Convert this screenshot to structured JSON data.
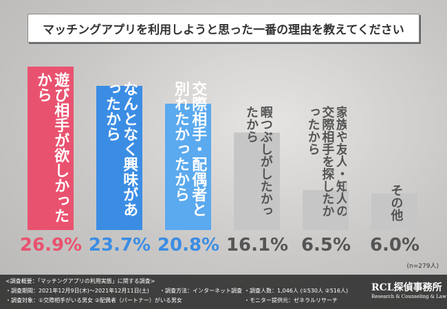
{
  "chart_data": {
    "type": "bar",
    "title": "マッチングアプリを利用しようと思った一番の理由を教えてください",
    "categories": [
      "遊び相手が欲しかったから",
      "なんとなく興味があったから",
      "交際相手・配偶者と別れたかったから",
      "暇つぶしがしたかったから",
      "家族や友人・知人の交際相手を探したかったから",
      "その他"
    ],
    "values": [
      26.9,
      23.7,
      20.8,
      16.1,
      6.5,
      6.0
    ],
    "value_labels": [
      "26.9%",
      "23.7%",
      "20.8%",
      "16.1%",
      "6.5%",
      "6.0%"
    ],
    "colors": [
      "#e9526f",
      "#3b8de4",
      "#5ba9ee",
      "#c6c6c6",
      "#c6c6c6",
      "#c6c6c6"
    ],
    "label_colors": [
      "#e9526f",
      "#3b8de4",
      "#3b8de4",
      "#555555",
      "#555555",
      "#555555"
    ],
    "note": "(n=279人)"
  },
  "footer": {
    "lines": [
      "<調査概要：「マッチングアプリの利用実態」に関する調査>",
      "・調査期間：2021年12月9日(木)〜2021年12月11日(土)",
      "・調査方法：インターネット調査",
      "・調査人数：1,046人 (①530人 ②516人)",
      "・調査対象：①交際相手がいる男女 ②配偶者（パートナー）がいる男女",
      "・モニター提供元：ゼネラルリサーチ"
    ],
    "logo": "RCL探偵事務所",
    "logo_sub": "Research & Counseling & Law"
  }
}
